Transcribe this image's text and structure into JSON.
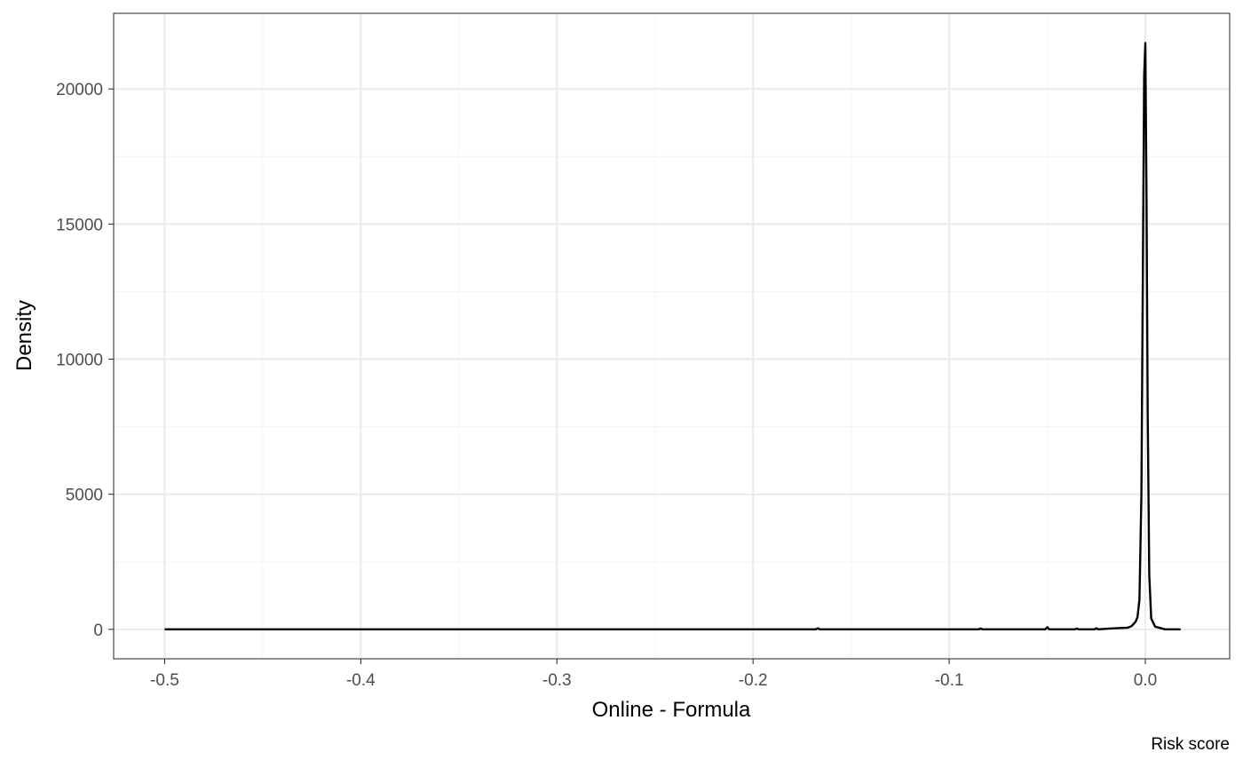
{
  "chart_data": {
    "type": "line",
    "title": "",
    "xlabel": "Online - Formula",
    "ylabel": "Density",
    "caption": "Risk score",
    "xlim": [
      -0.526,
      0.043
    ],
    "ylim": [
      -1090,
      22800
    ],
    "x_ticks": [
      -0.5,
      -0.4,
      -0.3,
      -0.2,
      -0.1,
      0.0
    ],
    "x_tick_labels": [
      "-0.5",
      "-0.4",
      "-0.3",
      "-0.2",
      "-0.1",
      "0.0"
    ],
    "y_ticks": [
      0,
      5000,
      10000,
      15000,
      20000
    ],
    "y_tick_labels": [
      "0",
      "5000",
      "10000",
      "15000",
      "20000"
    ],
    "grid": true,
    "theme": "bw",
    "colors": {
      "line": "#000000",
      "grid_major": "#ebebeb",
      "grid_minor": "#f5f5f5",
      "border": "#333333",
      "tick_text": "#4d4d4d"
    },
    "series": [
      {
        "x": [
          -0.5,
          -0.3,
          -0.168,
          -0.167,
          -0.166,
          -0.1,
          -0.085,
          -0.084,
          -0.083,
          -0.06,
          -0.051,
          -0.05,
          -0.049,
          -0.04,
          -0.036,
          -0.035,
          -0.034,
          -0.026,
          -0.025,
          -0.024,
          -0.02,
          -0.015,
          -0.012,
          -0.009,
          -0.007,
          -0.005,
          -0.004,
          -0.003,
          -0.002,
          -0.0012,
          -0.0006,
          0.0,
          0.0006,
          0.0012,
          0.002,
          0.003,
          0.005,
          0.01,
          0.018
        ],
        "y": [
          0,
          0,
          0,
          40,
          0,
          0,
          0,
          30,
          0,
          0,
          0,
          80,
          0,
          0,
          0,
          30,
          0,
          0,
          40,
          0,
          20,
          40,
          50,
          60,
          120,
          280,
          450,
          1100,
          5000,
          14000,
          20500,
          21700,
          16000,
          8000,
          2000,
          400,
          100,
          0,
          0
        ]
      }
    ]
  }
}
